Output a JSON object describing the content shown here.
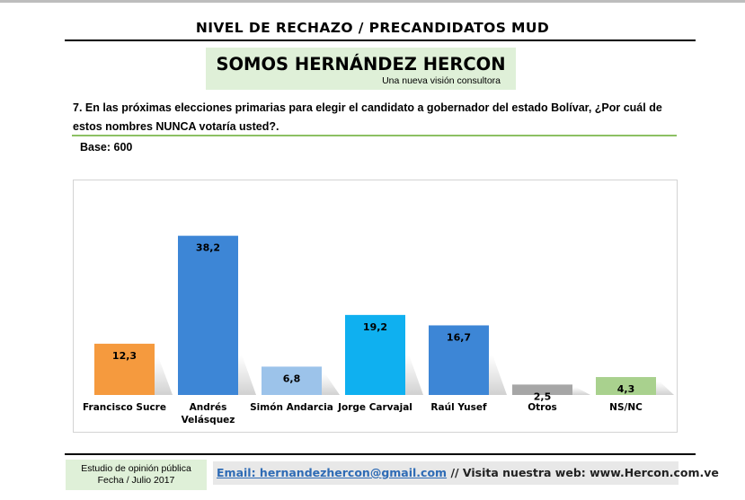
{
  "page": {
    "title": "NIVEL DE RECHAZO / PRECANDIDATOS MUD"
  },
  "brand": {
    "name": "SOMOS HERNÁNDEZ HERCON",
    "tagline": "Una nueva visión consultora"
  },
  "question": {
    "line1": "7. En las próximas elecciones primarias para elegir el candidato a gobernador del estado Bolívar, ¿Por cuál de",
    "line2": "estos nombres NUNCA votaría usted?."
  },
  "base": "Base: 600",
  "chart_data": {
    "type": "bar",
    "title": "",
    "xlabel": "",
    "ylabel": "",
    "ylim": [
      0,
      42
    ],
    "grid": false,
    "legend": "none",
    "categories": [
      "Francisco Sucre",
      "Andrés Velásquez",
      "Simón Andarcia",
      "Jorge Carvajal",
      "Raúl Yusef",
      "Otros",
      "NS/NC"
    ],
    "category_lines": [
      [
        "Francisco Sucre"
      ],
      [
        "Andrés",
        "Velásquez"
      ],
      [
        "Simón Andarcia"
      ],
      [
        "Jorge Carvajal"
      ],
      [
        "Raúl Yusef"
      ],
      [
        "Otros"
      ],
      [
        "NS/NC"
      ]
    ],
    "values": [
      12.3,
      38.2,
      6.8,
      19.2,
      16.7,
      2.5,
      4.3
    ],
    "value_labels": [
      "12,3",
      "38,2",
      "6,8",
      "19,2",
      "16,7",
      "2,5",
      "4,3"
    ],
    "colors": [
      "#f59a3e",
      "#3d86d6",
      "#9cc3ea",
      "#0fb0f0",
      "#3d86d6",
      "#a6a6a6",
      "#a9d18e"
    ]
  },
  "footer": {
    "study_line1": "Estudio de opinión pública",
    "study_line2": "Fecha / Julio 2017",
    "email": "Email: hernandezhercon@gmail.com",
    "visit": " // Visita nuestra web: www.Hercon.com.ve"
  }
}
